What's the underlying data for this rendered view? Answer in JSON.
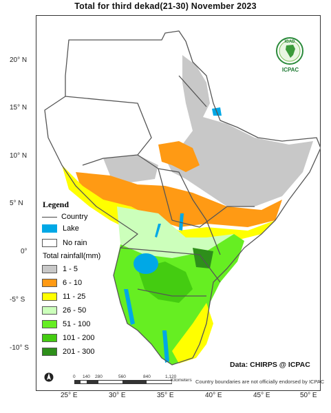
{
  "title": "Total  for   third dekad(21-30) November 2023",
  "logo": {
    "text": "IGAD",
    "caption": "ICPAC"
  },
  "latitude_labels": [
    "20° N",
    "15° N",
    "10° N",
    "5° N",
    "0°",
    "-5° S",
    "-10° S"
  ],
  "longitude_labels": [
    "25° E",
    "30° E",
    "35° E",
    "40° E",
    "45° E",
    "50° E"
  ],
  "legend": {
    "title": "Legend",
    "country": "Country",
    "lake": "Lake",
    "no_rain": "No rain",
    "rainfall_title": "Total rainfall(mm)",
    "classes": [
      {
        "label": "1 - 5",
        "color": "#c8c8c8"
      },
      {
        "label": "6 - 10",
        "color": "#ff9a14"
      },
      {
        "label": "11 - 25",
        "color": "#ffff00"
      },
      {
        "label": "26 - 50",
        "color": "#ccffbb"
      },
      {
        "label": "51 - 100",
        "color": "#66ee22"
      },
      {
        "label": "101 - 200",
        "color": "#44cc11"
      },
      {
        "label": "201 - 300",
        "color": "#2e8f1a"
      }
    ],
    "lake_color": "#00a8e6"
  },
  "scale_bar": {
    "ticks": [
      "0",
      "140",
      "280",
      "560",
      "840",
      "1,120"
    ],
    "unit": "Kilometers"
  },
  "data_source": "Data: CHIRPS @ ICPAC",
  "disclaimer": "Country boundaries are not officially endorsed by ICPAC"
}
